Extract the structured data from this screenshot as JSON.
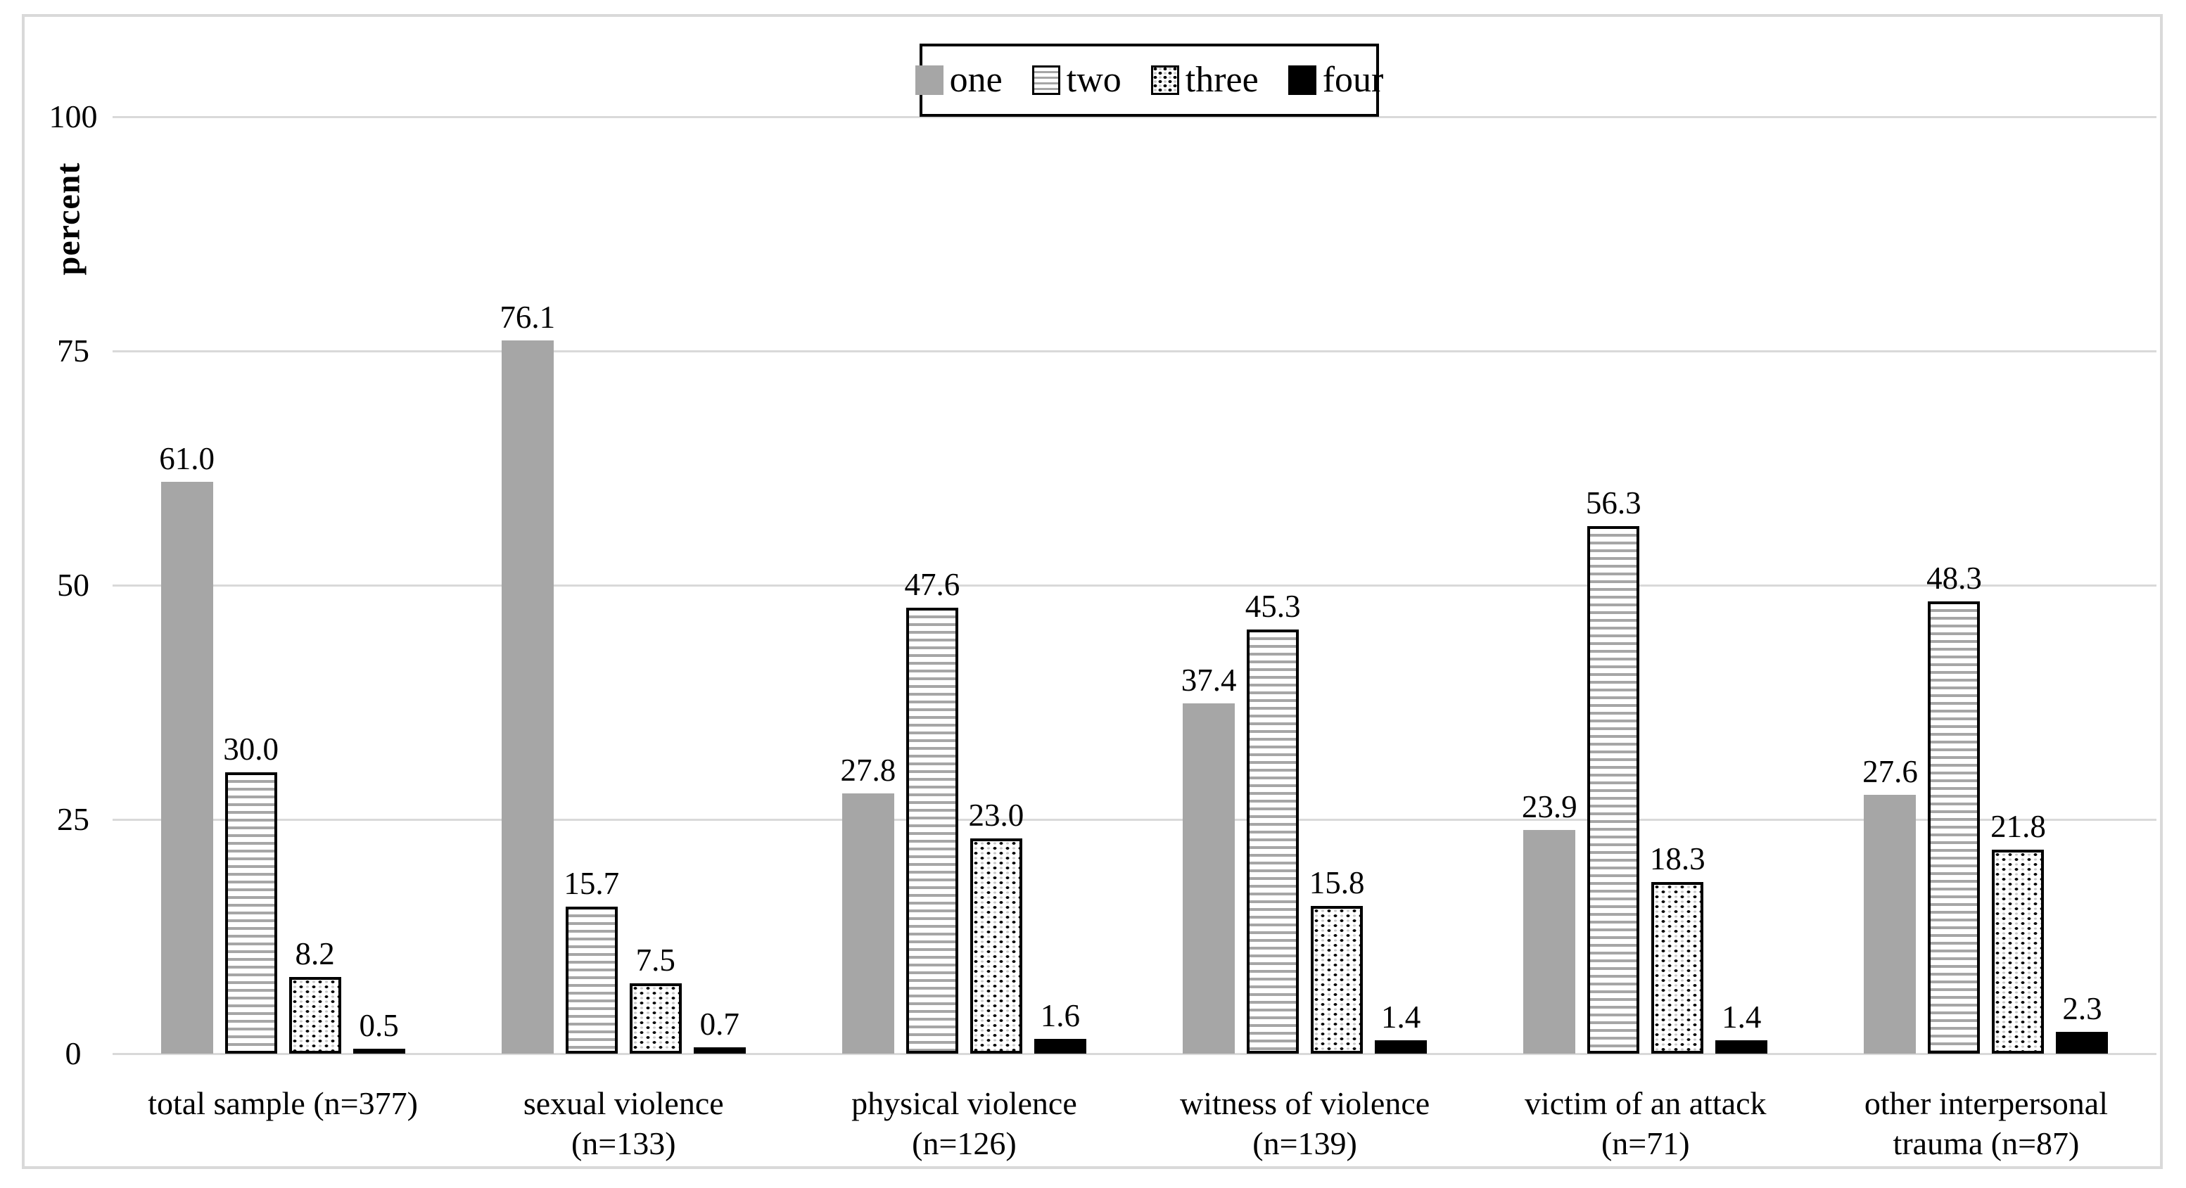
{
  "figure": {
    "background": "#ffffff",
    "frame_border_color": "#d9d9d9"
  },
  "colors": {
    "bar_gray": "#a6a6a6",
    "bar_black": "#000000",
    "gridline": "#d9d9d9",
    "text": "#000000"
  },
  "legend": {
    "position": "top-center",
    "items": [
      {
        "label": "one",
        "pattern": "solid-gray"
      },
      {
        "label": "two",
        "pattern": "h-stripes"
      },
      {
        "label": "three",
        "pattern": "dots"
      },
      {
        "label": "four",
        "pattern": "solid-black"
      }
    ]
  },
  "axes": {
    "y_label": "percent",
    "y_ticks": [
      "0",
      "25",
      "50",
      "75",
      "100"
    ],
    "y_tick_values": [
      0,
      25,
      50,
      75,
      100
    ],
    "y_max": 100,
    "grid": true
  },
  "chart_data": {
    "type": "bar",
    "title": "",
    "xlabel": "",
    "ylabel": "percent",
    "ylim": [
      0,
      100
    ],
    "grid": true,
    "legend_position": "top-center",
    "categories": [
      "total sample (n=377)",
      "sexual violence (n=133)",
      "physical violence (n=126)",
      "witness of violence (n=139)",
      "victim of an attack (n=71)",
      "other interpersonal trauma (n=87)"
    ],
    "category_label_lines": [
      [
        "total sample (n=377)"
      ],
      [
        "sexual violence",
        "(n=133)"
      ],
      [
        "physical violence",
        "(n=126)"
      ],
      [
        "witness of violence",
        "(n=139)"
      ],
      [
        "victim of an attack",
        "(n=71)"
      ],
      [
        "other interpersonal",
        "trauma (n=87)"
      ]
    ],
    "series": [
      {
        "name": "one",
        "pattern": "solid-gray",
        "values": [
          61.0,
          76.1,
          27.8,
          37.4,
          23.9,
          27.6
        ],
        "labels": [
          "61.0",
          "76.1",
          "27.8",
          "37.4",
          "23.9",
          "27.6"
        ]
      },
      {
        "name": "two",
        "pattern": "h-stripes",
        "values": [
          30.0,
          15.7,
          47.6,
          45.3,
          56.3,
          48.3
        ],
        "labels": [
          "30.0",
          "15.7",
          "47.6",
          "45.3",
          "56.3",
          "48.3"
        ]
      },
      {
        "name": "three",
        "pattern": "dots",
        "values": [
          8.2,
          7.5,
          23.0,
          15.8,
          18.3,
          21.8
        ],
        "labels": [
          "8.2",
          "7.5",
          "23.0",
          "15.8",
          "18.3",
          "21.8"
        ]
      },
      {
        "name": "four",
        "pattern": "solid-black",
        "values": [
          0.5,
          0.7,
          1.6,
          1.4,
          1.4,
          2.3
        ],
        "labels": [
          "0.5",
          "0.7",
          "1.6",
          "1.4",
          "1.4",
          "2.3"
        ]
      }
    ],
    "data_labels": true
  }
}
